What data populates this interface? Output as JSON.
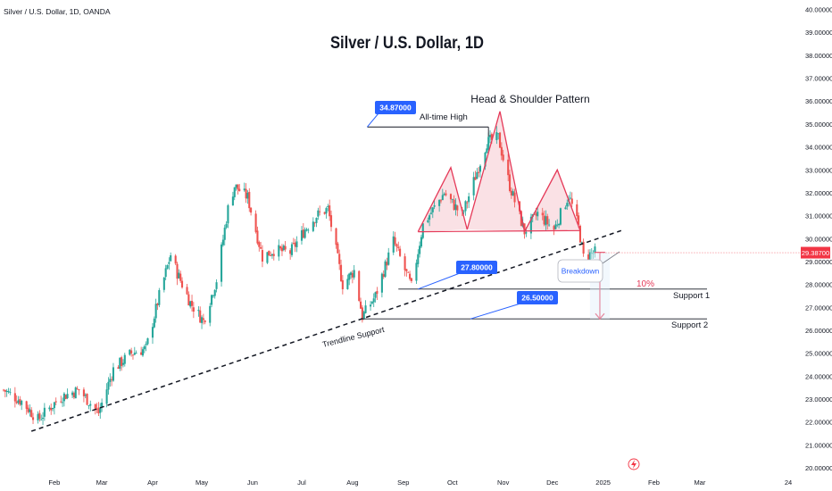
{
  "header": {
    "symbol_label": "Silver / U.S. Dollar, 1D, OANDA",
    "title": "Silver / U.S. Dollar, 1D"
  },
  "colors": {
    "up": "#26a69a",
    "down": "#ef5350",
    "pattern_line": "#e53958",
    "pattern_fill": "#f8d7dc",
    "callout": "#2962ff",
    "price_tag": "#f23645",
    "axis_text": "#131722",
    "bubble_text": "#2962ff"
  },
  "chart_data": {
    "type": "candlestick",
    "title": "Silver / U.S. Dollar, 1D",
    "y_axis": {
      "range": [
        19.7,
        40.0
      ],
      "ticks": [
        "40.00000",
        "39.00000",
        "38.00000",
        "37.00000",
        "36.00000",
        "35.00000",
        "34.00000",
        "33.00000",
        "32.00000",
        "31.00000",
        "30.00000",
        "29.00000",
        "28.00000",
        "27.00000",
        "26.00000",
        "25.00000",
        "24.00000",
        "23.00000",
        "22.00000",
        "21.00000",
        "20.00000"
      ]
    },
    "x_axis": {
      "range": [
        "2024-01-01",
        "2025-04-24"
      ],
      "ticks": [
        {
          "label": "Feb",
          "date": "2024-02-01"
        },
        {
          "label": "Mar",
          "date": "2024-03-01"
        },
        {
          "label": "Apr",
          "date": "2024-04-01"
        },
        {
          "label": "May",
          "date": "2024-05-01"
        },
        {
          "label": "Jun",
          "date": "2024-06-01"
        },
        {
          "label": "Jul",
          "date": "2024-07-01"
        },
        {
          "label": "Aug",
          "date": "2024-08-01"
        },
        {
          "label": "Sep",
          "date": "2024-09-01"
        },
        {
          "label": "Oct",
          "date": "2024-10-01"
        },
        {
          "label": "Nov",
          "date": "2024-11-01"
        },
        {
          "label": "Dec",
          "date": "2024-12-01"
        },
        {
          "label": "2025",
          "date": "2025-01-01"
        },
        {
          "label": "Feb",
          "date": "2025-02-01"
        },
        {
          "label": "Mar",
          "date": "2025-03-01"
        },
        {
          "label": "24",
          "date": "2025-04-24"
        }
      ]
    },
    "last_price": {
      "value": 29.387,
      "label": "29.38700"
    },
    "anchors": [
      {
        "date": "2024-01-01",
        "close": 23.4
      },
      {
        "date": "2024-01-12",
        "close": 22.9
      },
      {
        "date": "2024-01-22",
        "close": 22.1
      },
      {
        "date": "2024-02-05",
        "close": 23.1
      },
      {
        "date": "2024-02-16",
        "close": 23.4
      },
      {
        "date": "2024-02-28",
        "close": 22.4
      },
      {
        "date": "2024-03-08",
        "close": 24.3
      },
      {
        "date": "2024-03-19",
        "close": 25.0
      },
      {
        "date": "2024-03-28",
        "close": 25.2
      },
      {
        "date": "2024-04-05",
        "close": 27.5
      },
      {
        "date": "2024-04-12",
        "close": 29.3
      },
      {
        "date": "2024-04-16",
        "close": 28.5
      },
      {
        "date": "2024-04-24",
        "close": 27.2
      },
      {
        "date": "2024-05-02",
        "close": 26.4
      },
      {
        "date": "2024-05-10",
        "close": 28.2
      },
      {
        "date": "2024-05-17",
        "close": 31.3
      },
      {
        "date": "2024-05-21",
        "close": 32.3
      },
      {
        "date": "2024-05-29",
        "close": 31.8
      },
      {
        "date": "2024-06-07",
        "close": 29.2
      },
      {
        "date": "2024-06-14",
        "close": 29.5
      },
      {
        "date": "2024-06-24",
        "close": 29.4
      },
      {
        "date": "2024-07-03",
        "close": 30.4
      },
      {
        "date": "2024-07-10",
        "close": 31.0
      },
      {
        "date": "2024-07-17",
        "close": 31.3
      },
      {
        "date": "2024-07-26",
        "close": 28.0
      },
      {
        "date": "2024-08-02",
        "close": 28.6
      },
      {
        "date": "2024-08-07",
        "close": 26.6
      },
      {
        "date": "2024-08-15",
        "close": 27.5
      },
      {
        "date": "2024-08-26",
        "close": 29.9
      },
      {
        "date": "2024-09-06",
        "close": 27.9
      },
      {
        "date": "2024-09-13",
        "close": 30.6
      },
      {
        "date": "2024-09-26",
        "close": 32.0
      },
      {
        "date": "2024-10-07",
        "close": 31.0
      },
      {
        "date": "2024-10-22",
        "close": 34.2
      },
      {
        "date": "2024-10-29",
        "close": 34.4
      },
      {
        "date": "2024-11-05",
        "close": 32.3
      },
      {
        "date": "2024-11-14",
        "close": 30.3
      },
      {
        "date": "2024-11-22",
        "close": 31.1
      },
      {
        "date": "2024-12-02",
        "close": 30.4
      },
      {
        "date": "2024-12-11",
        "close": 31.9
      },
      {
        "date": "2024-12-17",
        "close": 30.5
      },
      {
        "date": "2024-12-20",
        "close": 29.2
      },
      {
        "date": "2024-12-27",
        "close": 29.4
      }
    ]
  },
  "annotations": {
    "ath_price": "34.87000",
    "ath_label": "All-time High",
    "pattern_label": "Head & Shoulder Pattern",
    "support1_price": "27.80000",
    "support1_label": "Support 1",
    "support2_price": "26.50000",
    "support2_label": "Support 2",
    "trendline_label": "Trendline Support",
    "breakdown_label": "Breakdown",
    "percent_label": "10%"
  },
  "icons": {
    "event_marker": "lightning-icon"
  }
}
